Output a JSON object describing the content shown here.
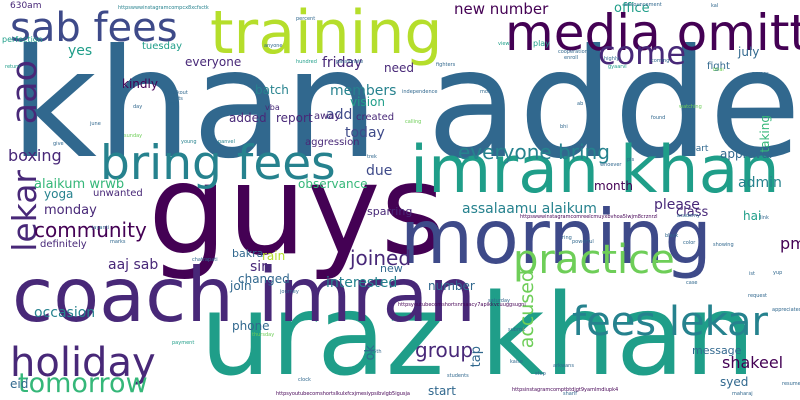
{
  "palette": {
    "background": "#ffffff",
    "colors": [
      "#440154",
      "#482878",
      "#3e4a89",
      "#31688e",
      "#26828e",
      "#1f9e89",
      "#35b779",
      "#6ece58",
      "#b5de2b",
      "#fde725"
    ]
  },
  "words": [
    {
      "text": "khan added"
    },
    {
      "text": "guys"
    },
    {
      "text": "uraz khan"
    },
    {
      "text": "morning"
    },
    {
      "text": "coach imran"
    },
    {
      "text": "training"
    },
    {
      "text": "imran khan"
    },
    {
      "text": "media omitted"
    },
    {
      "text": "bring fees"
    },
    {
      "text": "sab fees"
    },
    {
      "text": "holiday"
    },
    {
      "text": "fees lekar"
    },
    {
      "text": "practice"
    },
    {
      "text": "tomorrow"
    },
    {
      "text": "aao"
    },
    {
      "text": "lekar"
    },
    {
      "text": "come"
    },
    {
      "text": "community"
    },
    {
      "text": "everyone bring"
    },
    {
      "text": "joined"
    },
    {
      "text": "group"
    },
    {
      "text": "accused"
    },
    {
      "text": "new number"
    },
    {
      "text": "occasion"
    },
    {
      "text": "interested"
    },
    {
      "text": "shakeel"
    },
    {
      "text": "pm"
    },
    {
      "text": "boxing"
    },
    {
      "text": "alaikum wrwb"
    },
    {
      "text": "yes"
    },
    {
      "text": "kindly"
    },
    {
      "text": "everyone"
    },
    {
      "text": "batch"
    },
    {
      "text": "friday"
    },
    {
      "text": "need"
    },
    {
      "text": "members"
    },
    {
      "text": "vision"
    },
    {
      "text": "add"
    },
    {
      "text": "today"
    },
    {
      "text": "aggression"
    },
    {
      "text": "observance"
    },
    {
      "text": "due"
    },
    {
      "text": "sparring"
    },
    {
      "text": "month"
    },
    {
      "text": "assalaamu alaikum"
    },
    {
      "text": "please"
    },
    {
      "text": "class"
    },
    {
      "text": "admin"
    },
    {
      "text": "hai"
    },
    {
      "text": "monday"
    },
    {
      "text": "yoga"
    },
    {
      "text": "unwanted"
    },
    {
      "text": "definitely"
    },
    {
      "text": "aaj sab"
    },
    {
      "text": "sir"
    },
    {
      "text": "bakra"
    },
    {
      "text": "rain"
    },
    {
      "text": "changed"
    },
    {
      "text": "join"
    },
    {
      "text": "new"
    },
    {
      "text": "number"
    },
    {
      "text": "phone"
    },
    {
      "text": "eid"
    },
    {
      "text": "ok"
    },
    {
      "text": "tap"
    },
    {
      "text": "message"
    },
    {
      "text": "syed"
    },
    {
      "text": "start"
    },
    {
      "text": "approval"
    },
    {
      "text": "part"
    },
    {
      "text": "fight"
    },
    {
      "text": "july"
    },
    {
      "text": "office"
    },
    {
      "text": "taking"
    },
    {
      "text": "added"
    },
    {
      "text": "report"
    },
    {
      "text": "away"
    },
    {
      "text": "created"
    },
    {
      "text": "tuesday"
    },
    {
      "text": "630am"
    },
    {
      "text": "perfection"
    },
    {
      "text": "vba"
    },
    {
      "text": "hundred"
    },
    {
      "text": "play"
    },
    {
      "text": "view"
    },
    {
      "text": "gyaarvi"
    },
    {
      "text": "payment"
    },
    {
      "text": "sunday"
    },
    {
      "text": "young"
    },
    {
      "text": "panvel"
    },
    {
      "text": "return"
    },
    {
      "text": "chatrapati"
    },
    {
      "text": "jayanti"
    },
    {
      "text": "marks"
    },
    {
      "text": "academy"
    },
    {
      "text": "link"
    },
    {
      "text": "resume"
    },
    {
      "text": "maharaj"
    },
    {
      "text": "sharif"
    },
    {
      "text": "students"
    },
    {
      "text": "clock"
    },
    {
      "text": "request"
    },
    {
      "text": "appreciated"
    },
    {
      "text": "saturday"
    },
    {
      "text": "submit"
    },
    {
      "text": "announcement"
    },
    {
      "text": "cooperation"
    },
    {
      "text": "enroll"
    },
    {
      "text": "highly"
    },
    {
      "text": "kal"
    },
    {
      "text": "coming"
    },
    {
      "text": "independence"
    },
    {
      "text": "calling"
    },
    {
      "text": "powerful"
    },
    {
      "text": "ring"
    },
    {
      "text": "black"
    },
    {
      "text": "color"
    },
    {
      "text": "showing"
    },
    {
      "text": "anyone"
    },
    {
      "text": "percent"
    },
    {
      "text": "knockout"
    },
    {
      "text": "wants"
    },
    {
      "text": "thursday"
    },
    {
      "text": "journey"
    },
    {
      "text": "arkwans"
    },
    {
      "text": "step"
    },
    {
      "text": "kaise"
    },
    {
      "text": "25th"
    },
    {
      "text": "june"
    },
    {
      "text": "4k"
    },
    {
      "text": "day"
    },
    {
      "text": "time"
    },
    {
      "text": "give"
    },
    {
      "text": "fighters"
    },
    {
      "text": "passionate"
    },
    {
      "text": "watching"
    },
    {
      "text": "found"
    },
    {
      "text": "2nd"
    },
    {
      "text": "mobile"
    },
    {
      "text": "ab"
    },
    {
      "text": "bhi"
    },
    {
      "text": "pls"
    },
    {
      "text": "whoever"
    },
    {
      "text": "trek"
    },
    {
      "text": "bhai"
    },
    {
      "text": "case"
    },
    {
      "text": "yup"
    },
    {
      "text": "ist"
    },
    {
      "text": "names"
    },
    {
      "text": "httpsyoutubecomshortslkulxfcxjmesiypsibvlgb5igusja"
    },
    {
      "text": "httpsyoutubecomshortsnrsaacy7apikkvcuuggsugni"
    },
    {
      "text": "httpswwwinstagramcompcx8xcfsctk"
    },
    {
      "text": "httpsinstagramcomptbtdjgt9yamlmdiupk4"
    },
    {
      "text": "httpswwwinstagramcomreelcmuyxbvhoa5lwjm8crznrzl"
    }
  ]
}
